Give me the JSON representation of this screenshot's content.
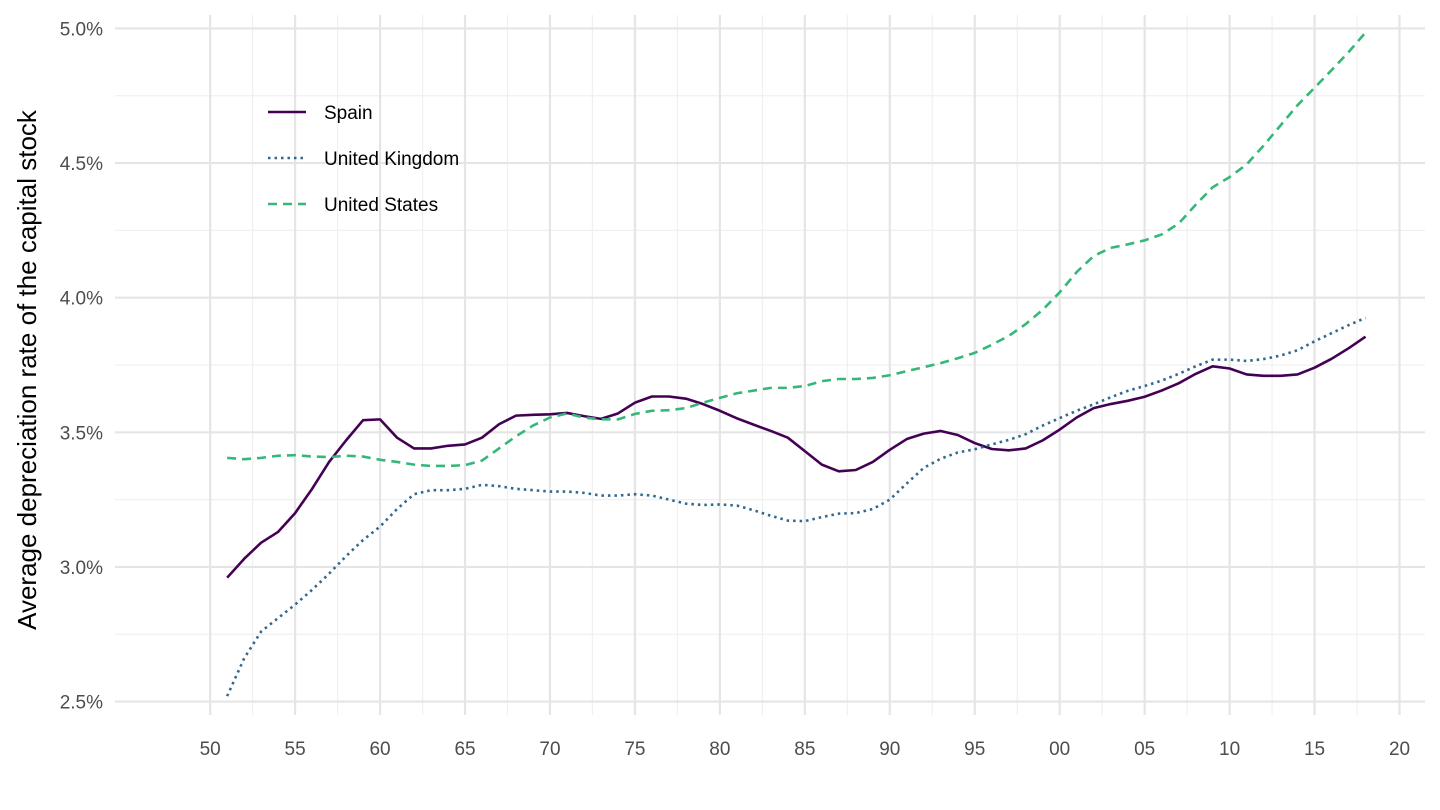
{
  "chart_data": {
    "type": "line",
    "title": "",
    "xlabel": "",
    "ylabel": "Average depreciation rate of the capital stock",
    "xlim": [
      1944.4,
      2021.5
    ],
    "ylim": [
      2.45,
      5.05
    ],
    "x_ticks": [
      1950,
      1955,
      1960,
      1965,
      1970,
      1975,
      1980,
      1985,
      1990,
      1995,
      2000,
      2005,
      2010,
      2015,
      2020
    ],
    "x_tick_labels": [
      "50",
      "55",
      "60",
      "65",
      "70",
      "75",
      "80",
      "85",
      "90",
      "95",
      "00",
      "05",
      "10",
      "15",
      "20"
    ],
    "y_ticks": [
      2.5,
      3.0,
      3.5,
      4.0,
      4.5,
      5.0
    ],
    "y_tick_labels": [
      "2.5%",
      "3.0%",
      "3.5%",
      "4.0%",
      "4.5%",
      "5.0%"
    ],
    "grid": true,
    "legend_position": "top-left inside",
    "x": [
      1951,
      1952,
      1953,
      1954,
      1955,
      1956,
      1957,
      1958,
      1959,
      1960,
      1961,
      1962,
      1963,
      1964,
      1965,
      1966,
      1967,
      1968,
      1969,
      1970,
      1971,
      1972,
      1973,
      1974,
      1975,
      1976,
      1977,
      1978,
      1979,
      1980,
      1981,
      1982,
      1983,
      1984,
      1985,
      1986,
      1987,
      1988,
      1989,
      1990,
      1991,
      1992,
      1993,
      1994,
      1995,
      1996,
      1997,
      1998,
      1999,
      2000,
      2001,
      2002,
      2003,
      2004,
      2005,
      2006,
      2007,
      2008,
      2009,
      2010,
      2011,
      2012,
      2013,
      2014,
      2015,
      2016,
      2017,
      2018
    ],
    "series": [
      {
        "name": "Spain",
        "color": "#440154",
        "dash": "solid",
        "values": [
          2.96,
          3.03,
          3.09,
          3.13,
          3.2,
          3.29,
          3.39,
          3.47,
          3.545,
          3.548,
          3.48,
          3.44,
          3.44,
          3.45,
          3.455,
          3.48,
          3.53,
          3.562,
          3.565,
          3.567,
          3.572,
          3.56,
          3.55,
          3.57,
          3.61,
          3.633,
          3.633,
          3.625,
          3.605,
          3.58,
          3.552,
          3.528,
          3.505,
          3.48,
          3.43,
          3.38,
          3.355,
          3.36,
          3.39,
          3.435,
          3.475,
          3.495,
          3.505,
          3.49,
          3.46,
          3.438,
          3.433,
          3.44,
          3.47,
          3.51,
          3.555,
          3.59,
          3.605,
          3.617,
          3.632,
          3.655,
          3.682,
          3.717,
          3.745,
          3.737,
          3.715,
          3.71,
          3.71,
          3.715,
          3.74,
          3.773,
          3.812,
          3.855
        ]
      },
      {
        "name": "United Kingdom",
        "color": "#31688e",
        "dash": "dotted",
        "values": [
          2.52,
          2.66,
          2.76,
          2.81,
          2.86,
          2.915,
          2.975,
          3.04,
          3.1,
          3.15,
          3.215,
          3.27,
          3.285,
          3.285,
          3.29,
          3.305,
          3.3,
          3.29,
          3.285,
          3.28,
          3.28,
          3.275,
          3.265,
          3.265,
          3.27,
          3.265,
          3.25,
          3.235,
          3.23,
          3.232,
          3.228,
          3.21,
          3.19,
          3.172,
          3.17,
          3.185,
          3.198,
          3.2,
          3.215,
          3.25,
          3.31,
          3.368,
          3.402,
          3.425,
          3.437,
          3.455,
          3.472,
          3.493,
          3.525,
          3.553,
          3.58,
          3.604,
          3.63,
          3.654,
          3.672,
          3.692,
          3.717,
          3.745,
          3.77,
          3.77,
          3.765,
          3.772,
          3.785,
          3.805,
          3.838,
          3.868,
          3.898,
          3.925
        ]
      },
      {
        "name": "United States",
        "color": "#35b779",
        "dash": "dashed",
        "values": [
          3.405,
          3.4,
          3.405,
          3.413,
          3.415,
          3.41,
          3.408,
          3.413,
          3.41,
          3.398,
          3.39,
          3.38,
          3.375,
          3.375,
          3.378,
          3.395,
          3.44,
          3.485,
          3.525,
          3.555,
          3.57,
          3.555,
          3.548,
          3.548,
          3.568,
          3.58,
          3.582,
          3.59,
          3.61,
          3.628,
          3.645,
          3.655,
          3.665,
          3.665,
          3.672,
          3.69,
          3.698,
          3.698,
          3.702,
          3.712,
          3.727,
          3.742,
          3.757,
          3.775,
          3.795,
          3.825,
          3.858,
          3.902,
          3.955,
          4.02,
          4.095,
          4.155,
          4.185,
          4.198,
          4.213,
          4.235,
          4.275,
          4.345,
          4.41,
          4.448,
          4.495,
          4.565,
          4.64,
          4.715,
          4.78,
          4.845,
          4.912,
          4.985
        ]
      }
    ]
  }
}
